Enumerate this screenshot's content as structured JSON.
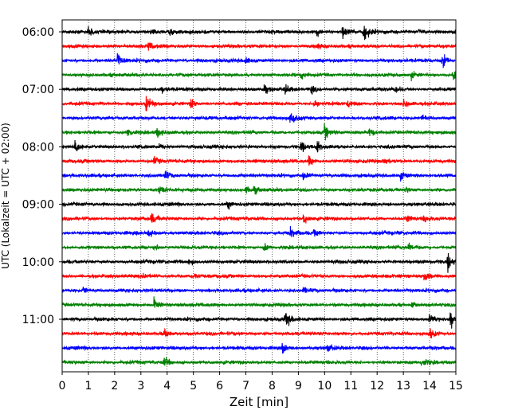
{
  "chart_data": {
    "type": "line",
    "title": "",
    "xlabel": "Zeit  [min]",
    "ylabel": "UTC (Lokalzeit = UTC + 02:00)",
    "xlim": [
      0,
      15
    ],
    "x_ticks": [
      "0",
      "1",
      "2",
      "3",
      "4",
      "5",
      "6",
      "7",
      "8",
      "9",
      "10",
      "11",
      "12",
      "13",
      "14",
      "15"
    ],
    "y_tick_labels": [
      "06:00",
      "07:00",
      "08:00",
      "09:00",
      "10:00",
      "11:00"
    ],
    "grid": "vertical dotted",
    "legend": "none",
    "trace_interval_minutes": 15,
    "trace_start": "06:00",
    "trace_count": 24,
    "colors_cycle": [
      "#000000",
      "#ff0000",
      "#0000ff",
      "#008000"
    ],
    "events": [
      [
        [
          1.0,
          0.5
        ],
        [
          3.4,
          0.4
        ],
        [
          4.1,
          0.4
        ],
        [
          9.7,
          0.5
        ],
        [
          10.7,
          0.9
        ],
        [
          11.5,
          1.0
        ],
        [
          13.6,
          0.4
        ]
      ],
      [
        [
          3.3,
          0.5
        ],
        [
          9.7,
          0.3
        ]
      ],
      [
        [
          2.1,
          1.0
        ],
        [
          7.0,
          0.5
        ],
        [
          14.5,
          0.9
        ]
      ],
      [
        [
          9.1,
          0.5
        ],
        [
          13.3,
          0.4
        ],
        [
          14.9,
          1.0
        ]
      ],
      [
        [
          3.8,
          0.3
        ],
        [
          7.7,
          0.4
        ],
        [
          8.5,
          0.5
        ],
        [
          9.5,
          0.4
        ],
        [
          12.7,
          0.4
        ]
      ],
      [
        [
          3.2,
          0.9
        ],
        [
          4.9,
          0.6
        ],
        [
          9.6,
          0.5
        ],
        [
          10.9,
          0.4
        ],
        [
          13.0,
          0.5
        ]
      ],
      [
        [
          8.7,
          0.9
        ],
        [
          13.7,
          0.4
        ]
      ],
      [
        [
          2.5,
          0.6
        ],
        [
          3.6,
          0.5
        ],
        [
          10.0,
          0.9
        ],
        [
          11.7,
          0.5
        ]
      ],
      [
        [
          0.5,
          1.0
        ],
        [
          3.7,
          0.5
        ],
        [
          9.1,
          0.5
        ],
        [
          9.7,
          0.8
        ]
      ],
      [
        [
          3.5,
          0.5
        ],
        [
          9.4,
          0.6
        ],
        [
          12.3,
          0.4
        ]
      ],
      [
        [
          3.9,
          0.5
        ],
        [
          9.2,
          0.6
        ],
        [
          12.9,
          0.6
        ]
      ],
      [
        [
          3.7,
          0.6
        ],
        [
          7.0,
          0.5
        ],
        [
          7.3,
          0.4
        ],
        [
          13.1,
          0.4
        ]
      ],
      [
        [
          6.3,
          0.5
        ]
      ],
      [
        [
          3.4,
          0.6
        ],
        [
          9.2,
          0.7
        ],
        [
          13.1,
          0.5
        ],
        [
          13.8,
          0.5
        ]
      ],
      [
        [
          3.3,
          0.4
        ],
        [
          8.7,
          0.6
        ],
        [
          9.6,
          0.4
        ]
      ],
      [
        [
          3.5,
          0.5
        ],
        [
          7.7,
          0.5
        ],
        [
          13.2,
          0.5
        ]
      ],
      [
        [
          4.8,
          0.4
        ],
        [
          14.7,
          0.9
        ]
      ],
      [
        [
          3.1,
          0.4
        ],
        [
          5.0,
          0.4
        ],
        [
          13.8,
          0.7
        ]
      ],
      [
        [
          0.8,
          0.4
        ],
        [
          9.2,
          0.4
        ]
      ],
      [
        [
          3.5,
          0.8
        ],
        [
          13.3,
          0.4
        ]
      ],
      [
        [
          8.5,
          1.0
        ],
        [
          14.0,
          0.6
        ],
        [
          14.8,
          1.0
        ]
      ],
      [
        [
          3.9,
          0.5
        ],
        [
          14.0,
          0.7
        ]
      ],
      [
        [
          8.4,
          0.6
        ],
        [
          10.1,
          0.5
        ]
      ],
      [
        [
          3.9,
          0.6
        ],
        [
          13.7,
          0.5
        ]
      ]
    ]
  }
}
